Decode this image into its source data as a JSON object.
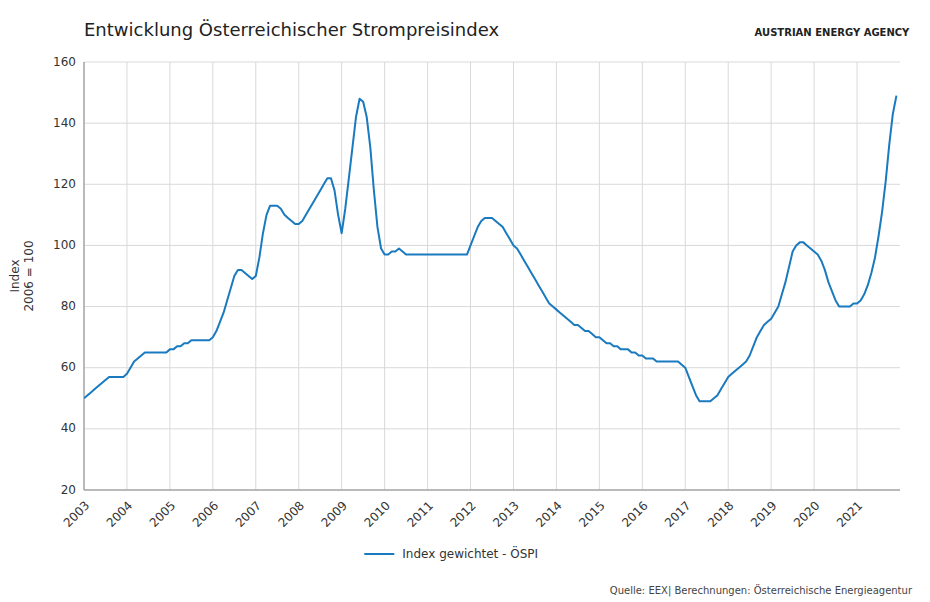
{
  "chart_data": {
    "type": "line",
    "title": "Entwicklung Österreichischer Strompreisindex",
    "y_label": "Index\n2006 = 100",
    "annotations": [
      "Quelle: EEX| Berechnungen: Österreichische Energieagentur",
      "AUSTRIAN ENERGY AGENCY"
    ],
    "grid": true,
    "legend": "bottom",
    "xlim": [
      2003.0,
      2022.0
    ],
    "xticks": [
      2003,
      2004,
      2005,
      2006,
      2007,
      2008,
      2009,
      2010,
      2011,
      2012,
      2013,
      2014,
      2015,
      2016,
      2017,
      2018,
      2019,
      2020,
      2021
    ],
    "ylim": [
      20,
      160
    ],
    "yticks": [
      20,
      40,
      60,
      80,
      100,
      120,
      140,
      160
    ],
    "x": [
      2003.0,
      2003.083,
      2003.167,
      2003.25,
      2003.333,
      2003.417,
      2003.5,
      2003.583,
      2003.667,
      2003.75,
      2003.833,
      2003.917,
      2004.0,
      2004.083,
      2004.167,
      2004.25,
      2004.333,
      2004.417,
      2004.5,
      2004.583,
      2004.667,
      2004.75,
      2004.833,
      2004.917,
      2005.0,
      2005.083,
      2005.167,
      2005.25,
      2005.333,
      2005.417,
      2005.5,
      2005.583,
      2005.667,
      2005.75,
      2005.833,
      2005.917,
      2006.0,
      2006.083,
      2006.167,
      2006.25,
      2006.333,
      2006.417,
      2006.5,
      2006.583,
      2006.667,
      2006.75,
      2006.833,
      2006.917,
      2007.0,
      2007.083,
      2007.167,
      2007.25,
      2007.333,
      2007.417,
      2007.5,
      2007.583,
      2007.667,
      2007.75,
      2007.833,
      2007.917,
      2008.0,
      2008.083,
      2008.167,
      2008.25,
      2008.333,
      2008.417,
      2008.5,
      2008.583,
      2008.667,
      2008.75,
      2008.833,
      2008.917,
      2009.0,
      2009.083,
      2009.167,
      2009.25,
      2009.333,
      2009.417,
      2009.5,
      2009.583,
      2009.667,
      2009.75,
      2009.833,
      2009.917,
      2010.0,
      2010.083,
      2010.167,
      2010.25,
      2010.333,
      2010.417,
      2010.5,
      2010.583,
      2010.667,
      2010.75,
      2010.833,
      2010.917,
      2011.0,
      2011.083,
      2011.167,
      2011.25,
      2011.333,
      2011.417,
      2011.5,
      2011.583,
      2011.667,
      2011.75,
      2011.833,
      2011.917,
      2012.0,
      2012.083,
      2012.167,
      2012.25,
      2012.333,
      2012.417,
      2012.5,
      2012.583,
      2012.667,
      2012.75,
      2012.833,
      2012.917,
      2013.0,
      2013.083,
      2013.167,
      2013.25,
      2013.333,
      2013.417,
      2013.5,
      2013.583,
      2013.667,
      2013.75,
      2013.833,
      2013.917,
      2014.0,
      2014.083,
      2014.167,
      2014.25,
      2014.333,
      2014.417,
      2014.5,
      2014.583,
      2014.667,
      2014.75,
      2014.833,
      2014.917,
      2015.0,
      2015.083,
      2015.167,
      2015.25,
      2015.333,
      2015.417,
      2015.5,
      2015.583,
      2015.667,
      2015.75,
      2015.833,
      2015.917,
      2016.0,
      2016.083,
      2016.167,
      2016.25,
      2016.333,
      2016.417,
      2016.5,
      2016.583,
      2016.667,
      2016.75,
      2016.833,
      2016.917,
      2017.0,
      2017.083,
      2017.167,
      2017.25,
      2017.333,
      2017.417,
      2017.5,
      2017.583,
      2017.667,
      2017.75,
      2017.833,
      2017.917,
      2018.0,
      2018.083,
      2018.167,
      2018.25,
      2018.333,
      2018.417,
      2018.5,
      2018.583,
      2018.667,
      2018.75,
      2018.833,
      2018.917,
      2019.0,
      2019.083,
      2019.167,
      2019.25,
      2019.333,
      2019.417,
      2019.5,
      2019.583,
      2019.667,
      2019.75,
      2019.833,
      2019.917,
      2020.0,
      2020.083,
      2020.167,
      2020.25,
      2020.333,
      2020.417,
      2020.5,
      2020.583,
      2020.667,
      2020.75,
      2020.833,
      2020.917,
      2021.0,
      2021.083,
      2021.167,
      2021.25,
      2021.333,
      2021.417,
      2021.5,
      2021.583,
      2021.667,
      2021.75,
      2021.833,
      2021.917
    ],
    "series": [
      {
        "name": "Index gewichtet  - ÖSPI",
        "color": "#1a7abf",
        "values": [
          50,
          51,
          52,
          53,
          54,
          55,
          56,
          57,
          57,
          57,
          57,
          57,
          58,
          60,
          62,
          63,
          64,
          65,
          65,
          65,
          65,
          65,
          65,
          65,
          66,
          66,
          67,
          67,
          68,
          68,
          69,
          69,
          69,
          69,
          69,
          69,
          70,
          72,
          75,
          78,
          82,
          86,
          90,
          92,
          92,
          91,
          90,
          89,
          90,
          96,
          104,
          110,
          113,
          113,
          113,
          112,
          110,
          109,
          108,
          107,
          107,
          108,
          110,
          112,
          114,
          116,
          118,
          120,
          122,
          122,
          118,
          110,
          104,
          112,
          122,
          132,
          142,
          148,
          147,
          142,
          132,
          118,
          106,
          99,
          97,
          97,
          98,
          98,
          99,
          98,
          97,
          97,
          97,
          97,
          97,
          97,
          97,
          97,
          97,
          97,
          97,
          97,
          97,
          97,
          97,
          97,
          97,
          97,
          100,
          103,
          106,
          108,
          109,
          109,
          109,
          108,
          107,
          106,
          104,
          102,
          100,
          99,
          97,
          95,
          93,
          91,
          89,
          87,
          85,
          83,
          81,
          80,
          79,
          78,
          77,
          76,
          75,
          74,
          74,
          73,
          72,
          72,
          71,
          70,
          70,
          69,
          68,
          68,
          67,
          67,
          66,
          66,
          66,
          65,
          65,
          64,
          64,
          63,
          63,
          63,
          62,
          62,
          62,
          62,
          62,
          62,
          62,
          61,
          60,
          57,
          54,
          51,
          49,
          49,
          49,
          49,
          50,
          51,
          53,
          55,
          57,
          58,
          59,
          60,
          61,
          62,
          64,
          67,
          70,
          72,
          74,
          75,
          76,
          78,
          80,
          84,
          88,
          93,
          98,
          100,
          101,
          101,
          100,
          99,
          98,
          97,
          95,
          92,
          88,
          85,
          82,
          80,
          80,
          80,
          80,
          81,
          81,
          82,
          84,
          87,
          91,
          96,
          103,
          111,
          121,
          133,
          143,
          149
        ]
      }
    ]
  }
}
